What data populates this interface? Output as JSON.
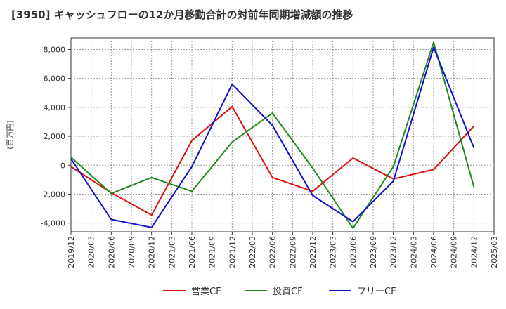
{
  "chart_data": {
    "type": "line",
    "title": "[3950]  キャッシュフローの12か月移動合計の対前年同期増減額の推移",
    "ylabel": "(百万円)",
    "xlabel": "",
    "ylim": [
      -4600,
      8800
    ],
    "yticks": [
      -4000,
      -2000,
      0,
      2000,
      4000,
      6000,
      8000
    ],
    "ytick_labels": [
      "-4,000",
      "-2,000",
      "0",
      "2,000",
      "4,000",
      "6,000",
      "8,000"
    ],
    "x_ticks": [
      "2019/12",
      "2020/03",
      "2020/06",
      "2020/09",
      "2020/12",
      "2021/03",
      "2021/06",
      "2021/09",
      "2021/12",
      "2022/03",
      "2022/06",
      "2022/09",
      "2022/12",
      "2023/03",
      "2023/06",
      "2023/09",
      "2023/12",
      "2024/03",
      "2024/06",
      "2024/09",
      "2024/12",
      "2025/03"
    ],
    "x": [
      "2019/12",
      "2020/06",
      "2020/12",
      "2021/06",
      "2021/12",
      "2022/06",
      "2022/12",
      "2023/06",
      "2023/12",
      "2024/06",
      "2024/12"
    ],
    "series": [
      {
        "name": "営業CF",
        "color": "#dd1111",
        "values": [
          -100,
          -1900,
          -3450,
          1700,
          4050,
          -850,
          -1800,
          500,
          -950,
          -300,
          2700
        ]
      },
      {
        "name": "投資CF",
        "color": "#228822",
        "values": [
          550,
          -1950,
          -850,
          -1800,
          1600,
          3600,
          -200,
          -4350,
          -100,
          8500,
          -1500
        ]
      },
      {
        "name": "フリーCF",
        "color": "#1111cc",
        "values": [
          450,
          -3750,
          -4300,
          -100,
          5600,
          2750,
          -2100,
          -3900,
          -1100,
          8150,
          1200
        ]
      }
    ],
    "grid": true,
    "legend": "bottom"
  }
}
